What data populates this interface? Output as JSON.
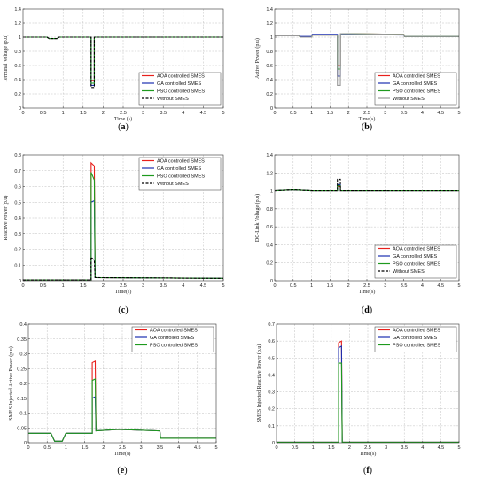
{
  "chart_data": [
    {
      "id": "a",
      "type": "line",
      "caption": "(a)",
      "ylabel": "Terminal Voltage (p.u)",
      "xlabel": "Time (s)",
      "xlim": [
        0,
        5
      ],
      "xticks": [
        0,
        0.5,
        1,
        1.5,
        2,
        2.5,
        3,
        3.5,
        4,
        4.5,
        5
      ],
      "ylim": [
        0,
        1.4
      ],
      "yticks": [
        0,
        0.2,
        0.4,
        0.6,
        0.8,
        1,
        1.2,
        1.4
      ],
      "legend": "bottom-right",
      "series": [
        {
          "name": "AOA controlled SMES",
          "color": "#e8201c",
          "dash": false,
          "x": [
            0,
            0.6,
            0.65,
            0.85,
            0.9,
            1.7,
            1.7,
            1.78,
            1.78,
            5
          ],
          "y": [
            1,
            1,
            0.98,
            0.98,
            1,
            1,
            0.39,
            0.39,
            1,
            1
          ]
        },
        {
          "name": "GA controlled SMES",
          "color": "#1a2fb0",
          "dash": false,
          "x": [
            0,
            0.6,
            0.65,
            0.85,
            0.9,
            1.7,
            1.7,
            1.78,
            1.78,
            5
          ],
          "y": [
            1,
            1,
            0.98,
            0.98,
            1,
            1,
            0.32,
            0.32,
            1,
            1
          ]
        },
        {
          "name": "PSO controlled SMES",
          "color": "#1e9a1e",
          "dash": false,
          "x": [
            0,
            0.6,
            0.65,
            0.85,
            0.9,
            1.7,
            1.7,
            1.78,
            1.78,
            5
          ],
          "y": [
            1,
            1,
            0.98,
            0.98,
            1,
            1,
            0.35,
            0.35,
            1,
            1
          ]
        },
        {
          "name": "Without SMES",
          "color": "#000000",
          "dash": true,
          "x": [
            0,
            0.6,
            0.65,
            0.85,
            0.9,
            1.7,
            1.7,
            1.78,
            1.78,
            5
          ],
          "y": [
            1,
            1,
            0.98,
            0.98,
            1,
            1,
            0.29,
            0.29,
            1,
            1
          ]
        }
      ]
    },
    {
      "id": "b",
      "type": "line",
      "caption": "(b)",
      "ylabel": "Active Power (p.u)",
      "xlabel": "Time(s)",
      "xlim": [
        0,
        5
      ],
      "xticks": [
        0,
        0.5,
        1,
        1.5,
        2,
        2.5,
        3,
        3.5,
        4,
        4.5,
        5
      ],
      "ylim": [
        0,
        1.4
      ],
      "yticks": [
        0,
        0.2,
        0.4,
        0.6,
        0.8,
        1,
        1.2,
        1.4
      ],
      "legend": "bottom-right",
      "series": [
        {
          "name": "AOA controlled SMES",
          "color": "#e8201c",
          "dash": false,
          "x": [
            0,
            0.65,
            0.7,
            1.0,
            1.02,
            1.7,
            1.7,
            1.78,
            1.78,
            3.5,
            3.52,
            5
          ],
          "y": [
            1.02,
            1.02,
            1,
            1,
            1.03,
            1.03,
            0.6,
            0.6,
            1.05,
            1.04,
            1.01,
            1.01
          ]
        },
        {
          "name": "GA controlled SMES",
          "color": "#1a2fb0",
          "dash": false,
          "x": [
            0,
            0.65,
            0.7,
            1.0,
            1.02,
            1.7,
            1.7,
            1.78,
            1.78,
            3.5,
            3.52,
            5
          ],
          "y": [
            1.03,
            1.03,
            1.01,
            1.01,
            1.04,
            1.04,
            0.45,
            0.45,
            1.04,
            1.03,
            1.01,
            1.01
          ]
        },
        {
          "name": "PSO controlled SMES",
          "color": "#1e9a1e",
          "dash": false,
          "x": [
            0,
            0.65,
            0.7,
            1.0,
            1.02,
            1.7,
            1.7,
            1.78,
            1.78,
            3.5,
            3.52,
            5
          ],
          "y": [
            1.02,
            1.02,
            1,
            1,
            1.03,
            1.03,
            0.55,
            0.55,
            1.05,
            1.04,
            1.01,
            1.01
          ]
        },
        {
          "name": "Without SMES",
          "color": "#999999",
          "dash": false,
          "x": [
            0,
            0.65,
            0.7,
            1.0,
            1.02,
            1.7,
            1.7,
            1.78,
            1.78,
            3.5,
            3.52,
            5
          ],
          "y": [
            1.02,
            1.02,
            1,
            1,
            1.03,
            1.03,
            0.32,
            0.32,
            1.05,
            1.04,
            1.01,
            1.01
          ]
        }
      ]
    },
    {
      "id": "c",
      "type": "line",
      "caption": "(c)",
      "ylabel": "Reactive Power (p.u)",
      "xlabel": "Time(s)",
      "xlim": [
        0,
        5
      ],
      "xticks": [
        0,
        0.5,
        1,
        1.5,
        2,
        2.5,
        3,
        3.5,
        4,
        4.5,
        5
      ],
      "ylim": [
        0,
        0.8
      ],
      "yticks": [
        0,
        0.1,
        0.2,
        0.3,
        0.4,
        0.5,
        0.6,
        0.7,
        0.8
      ],
      "legend": "top-right",
      "series": [
        {
          "name": "AOA controlled SMES",
          "color": "#e8201c",
          "dash": false,
          "x": [
            0,
            1.7,
            1.7,
            1.78,
            1.8,
            5
          ],
          "y": [
            0.005,
            0.005,
            0.75,
            0.73,
            0.02,
            0.015
          ]
        },
        {
          "name": "GA controlled SMES",
          "color": "#1a2fb0",
          "dash": false,
          "x": [
            0,
            1.7,
            1.7,
            1.78,
            1.8,
            5
          ],
          "y": [
            0.005,
            0.005,
            0.5,
            0.51,
            0.02,
            0.015
          ]
        },
        {
          "name": "PSO controlled SMES",
          "color": "#1e9a1e",
          "dash": false,
          "x": [
            0,
            1.7,
            1.7,
            1.78,
            1.8,
            5
          ],
          "y": [
            0.005,
            0.005,
            0.69,
            0.64,
            0.02,
            0.015
          ]
        },
        {
          "name": "Without SMES",
          "color": "#000000",
          "dash": true,
          "x": [
            0,
            1.7,
            1.7,
            1.78,
            1.8,
            5
          ],
          "y": [
            0.005,
            0.005,
            0.15,
            0.13,
            0.02,
            0.015
          ]
        }
      ]
    },
    {
      "id": "d",
      "type": "line",
      "caption": "(d)",
      "ylabel": "DC-Link Voltage (p.u)",
      "xlabel": "Time(s)",
      "xlim": [
        0,
        5
      ],
      "xticks": [
        0,
        0.5,
        1,
        1.5,
        2,
        2.5,
        3,
        3.5,
        4,
        4.5,
        5
      ],
      "ylim": [
        0,
        1.4
      ],
      "yticks": [
        0,
        0.2,
        0.4,
        0.6,
        0.8,
        1,
        1.2,
        1.4
      ],
      "legend": "bottom-right",
      "series": [
        {
          "name": "AOA controlled SMES",
          "color": "#e8201c",
          "dash": false,
          "x": [
            0,
            0.5,
            1.0,
            1.7,
            1.7,
            1.78,
            1.78,
            5
          ],
          "y": [
            1.0,
            1.01,
            1.0,
            1.0,
            1.05,
            1.05,
            1.0,
            1.0
          ]
        },
        {
          "name": "GA controlled SMES",
          "color": "#1a2fb0",
          "dash": false,
          "x": [
            0,
            0.5,
            1.0,
            1.7,
            1.7,
            1.78,
            1.78,
            5
          ],
          "y": [
            1.0,
            1.01,
            1.0,
            1.0,
            1.07,
            1.07,
            1.0,
            1.0
          ]
        },
        {
          "name": "PSO controlled SMES",
          "color": "#1e9a1e",
          "dash": false,
          "x": [
            0,
            0.5,
            1.0,
            1.7,
            1.7,
            1.78,
            1.78,
            5
          ],
          "y": [
            1.0,
            1.01,
            1.0,
            1.0,
            1.06,
            1.06,
            1.0,
            1.0
          ]
        },
        {
          "name": "Without SMES",
          "color": "#000000",
          "dash": true,
          "x": [
            0,
            0.5,
            1.0,
            1.7,
            1.7,
            1.78,
            1.78,
            5
          ],
          "y": [
            1.0,
            1.01,
            1.0,
            1.0,
            1.13,
            1.13,
            1.0,
            1.0
          ]
        }
      ]
    },
    {
      "id": "e",
      "type": "line",
      "caption": "(e)",
      "ylabel": "SMES Injected Active Power (p.u)",
      "xlabel": "Time(s)",
      "xlim": [
        0,
        5
      ],
      "xticks": [
        0,
        0.5,
        1,
        1.5,
        2,
        2.5,
        3,
        3.5,
        4,
        4.5,
        5
      ],
      "ylim": [
        0,
        0.4
      ],
      "yticks": [
        0,
        0.05,
        0.1,
        0.15,
        0.2,
        0.25,
        0.3,
        0.35,
        0.4
      ],
      "legend": "top-right",
      "series": [
        {
          "name": "AOA controlled SMES",
          "color": "#e8201c",
          "dash": false,
          "x": [
            0,
            0.6,
            0.7,
            0.9,
            1.0,
            1.7,
            1.7,
            1.78,
            1.8,
            2.4,
            3.5,
            3.52,
            5
          ],
          "y": [
            0.032,
            0.032,
            0.005,
            0.005,
            0.032,
            0.032,
            0.27,
            0.275,
            0.04,
            0.045,
            0.04,
            0.015,
            0.015
          ]
        },
        {
          "name": "GA controlled SMES",
          "color": "#1a2fb0",
          "dash": false,
          "x": [
            0,
            0.6,
            0.7,
            0.9,
            1.0,
            1.7,
            1.7,
            1.78,
            1.8,
            2.4,
            3.5,
            3.52,
            5
          ],
          "y": [
            0.032,
            0.032,
            0.005,
            0.005,
            0.032,
            0.032,
            0.15,
            0.155,
            0.04,
            0.045,
            0.04,
            0.015,
            0.015
          ]
        },
        {
          "name": "PSO controlled SMES",
          "color": "#1e9a1e",
          "dash": false,
          "x": [
            0,
            0.6,
            0.7,
            0.9,
            1.0,
            1.7,
            1.7,
            1.78,
            1.8,
            2.4,
            3.5,
            3.52,
            5
          ],
          "y": [
            0.032,
            0.032,
            0.005,
            0.005,
            0.032,
            0.032,
            0.21,
            0.215,
            0.04,
            0.045,
            0.04,
            0.015,
            0.015
          ]
        }
      ]
    },
    {
      "id": "f",
      "type": "line",
      "caption": "(f)",
      "ylabel": "SMES Injected Reactive Power (p.u)",
      "xlabel": "Time(s)",
      "xlim": [
        0,
        5
      ],
      "xticks": [
        0,
        0.5,
        1,
        1.5,
        2,
        2.5,
        3,
        3.5,
        4,
        4.5,
        5
      ],
      "ylim": [
        0,
        0.7
      ],
      "yticks": [
        0,
        0.1,
        0.2,
        0.3,
        0.4,
        0.5,
        0.6,
        0.7
      ],
      "legend": "top-right",
      "series": [
        {
          "name": "AOA controlled SMES",
          "color": "#e8201c",
          "dash": false,
          "x": [
            0,
            1.7,
            1.7,
            1.78,
            1.8,
            5
          ],
          "y": [
            0.003,
            0.003,
            0.59,
            0.6,
            0.003,
            0.003
          ]
        },
        {
          "name": "GA controlled SMES",
          "color": "#1a2fb0",
          "dash": false,
          "x": [
            0,
            1.7,
            1.7,
            1.78,
            1.8,
            5
          ],
          "y": [
            0.003,
            0.003,
            0.56,
            0.57,
            0.003,
            0.003
          ]
        },
        {
          "name": "PSO controlled SMES",
          "color": "#1e9a1e",
          "dash": false,
          "x": [
            0,
            1.7,
            1.7,
            1.78,
            1.8,
            5
          ],
          "y": [
            0.003,
            0.003,
            0.47,
            0.47,
            0.003,
            0.003
          ]
        }
      ]
    }
  ]
}
